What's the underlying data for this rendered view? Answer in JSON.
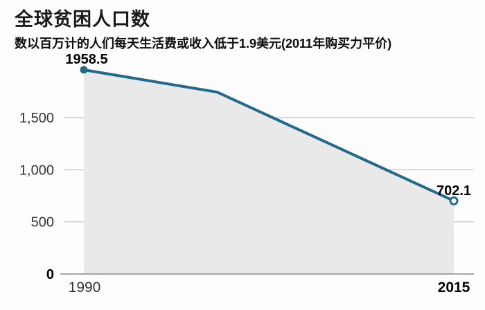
{
  "chart_data": {
    "type": "line",
    "title": "全球贫困人口数",
    "subtitle": "数以百万计的人们每天生活费或收入低于1.9美元(2011年购买力平价)",
    "x": [
      1990,
      1999,
      2015
    ],
    "values": [
      1958.5,
      1745,
      702.1
    ],
    "value_labels": [
      "1958.5",
      "702.1"
    ],
    "x_tick_labels": [
      "1990",
      "2015"
    ],
    "y_ticks": [
      0,
      500,
      1000,
      1500
    ],
    "y_tick_labels": [
      "0",
      "500",
      "1,000",
      "1,500"
    ],
    "ylim": [
      0,
      2100
    ],
    "xlim": [
      1990,
      2016
    ],
    "area_fill": true,
    "grid": "horizontal",
    "legend": "none",
    "marker_first": "filled-dot",
    "marker_last": "open-dot",
    "colors": {
      "line": "#226a8b",
      "area_fill": "#e9e9e9",
      "gridline": "#cccccc",
      "axis_line": "#a6a6a6",
      "tick_label": "#333333",
      "emphasis_label": "#000000"
    }
  }
}
